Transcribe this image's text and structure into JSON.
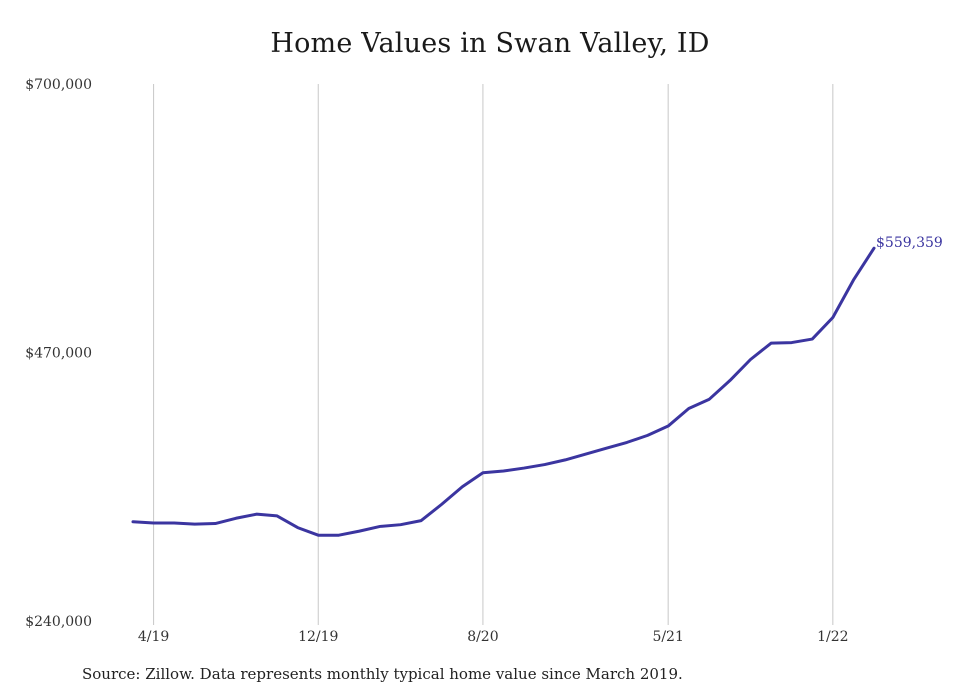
{
  "chart_data": {
    "type": "line",
    "title": "Home Values in Swan Valley, ID",
    "xlabel": "",
    "ylabel": "",
    "ylim": [
      240000,
      700000
    ],
    "y_ticks": [
      {
        "value": 700000,
        "label": "$700,000"
      },
      {
        "value": 470000,
        "label": "$470,000"
      },
      {
        "value": 240000,
        "label": "$240,000"
      }
    ],
    "x_ticks": [
      {
        "month_index": 1,
        "label": "4/19"
      },
      {
        "month_index": 9,
        "label": "12/19"
      },
      {
        "month_index": 17,
        "label": "8/20"
      },
      {
        "month_index": 26,
        "label": "5/21"
      },
      {
        "month_index": 34,
        "label": "1/22"
      }
    ],
    "x": [
      "3/19",
      "4/19",
      "5/19",
      "6/19",
      "7/19",
      "8/19",
      "9/19",
      "10/19",
      "11/19",
      "12/19",
      "1/20",
      "2/20",
      "3/20",
      "4/20",
      "5/20",
      "6/20",
      "7/20",
      "8/20",
      "9/20",
      "10/20",
      "11/20",
      "12/20",
      "1/21",
      "2/21",
      "3/21",
      "4/21",
      "5/21",
      "6/21",
      "7/21",
      "8/21",
      "9/21",
      "10/21",
      "11/21",
      "12/21",
      "1/22",
      "2/22",
      "3/22"
    ],
    "series": [
      {
        "color": "#3b35a0",
        "values": [
          325000,
          324000,
          324000,
          323000,
          323500,
          328000,
          331500,
          330000,
          320000,
          313500,
          313500,
          317000,
          321000,
          322500,
          326000,
          340000,
          355000,
          367000,
          368500,
          371000,
          374000,
          378000,
          383000,
          388000,
          393000,
          399000,
          407000,
          422000,
          430000,
          446000,
          464000,
          478000,
          478500,
          481500,
          500000,
          532000,
          559359
        ]
      }
    ],
    "end_label": "$559,359",
    "grid": {
      "vertical": true,
      "horizontal": false
    },
    "grid_color": "#c8c8c8",
    "legend": "none"
  },
  "footer": {
    "source": "Source: Zillow. Data represents monthly typical home value since March 2019."
  }
}
